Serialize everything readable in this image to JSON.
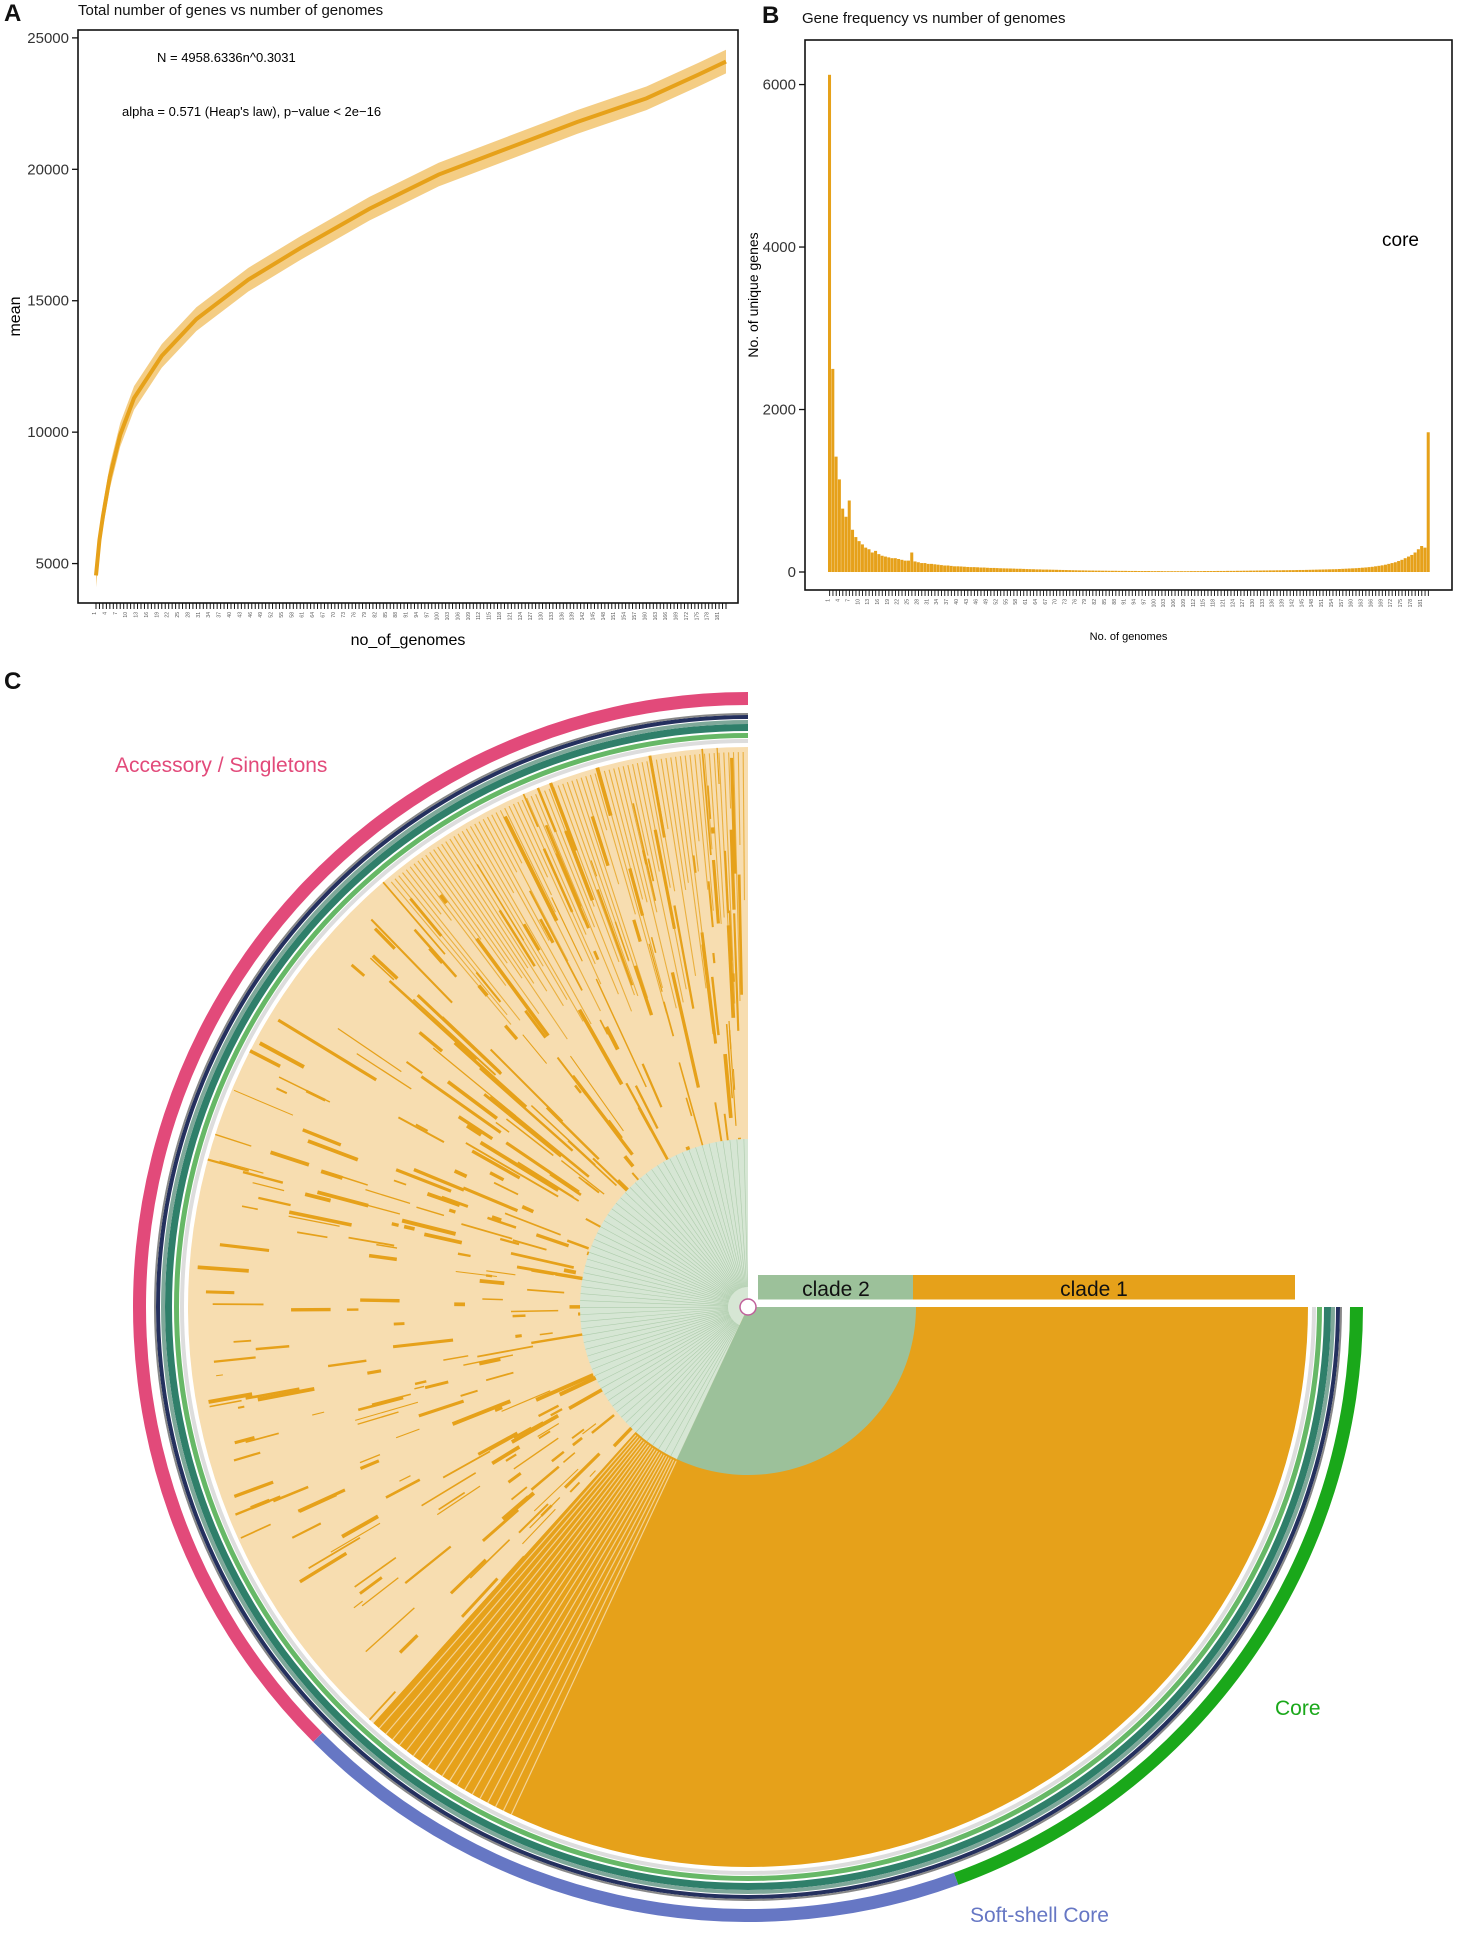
{
  "panels": {
    "a": "A",
    "b": "B",
    "c": "C"
  },
  "chart_data": [
    {
      "type": "line",
      "title": "Total number of genes vs number of genomes",
      "xlabel": "no_of_genomes",
      "ylabel": "mean",
      "yticks": [
        5000,
        10000,
        15000,
        20000,
        25000
      ],
      "ylim": [
        3500,
        25300
      ],
      "xlim": [
        1,
        183
      ],
      "annotation_formula": "N = 4958.6336n^0.3031",
      "annotation_alpha": "alpha = 0.571 (Heap's law), p−value < 2e−16",
      "fit": {
        "a": 4958.6336,
        "b": 0.3031
      },
      "series": [
        {
          "x": [
            1,
            2,
            3,
            5,
            8,
            12,
            20,
            30,
            45,
            60,
            80,
            100,
            120,
            140,
            160,
            175,
            183
          ],
          "y": [
            4550,
            5900,
            6800,
            8300,
            9900,
            11300,
            12900,
            14300,
            15800,
            17000,
            18500,
            19800,
            20800,
            21800,
            22700,
            23600,
            24100
          ],
          "band": 450
        }
      ],
      "colors": {
        "line": "#e6a11a",
        "band": "#f2c46e"
      },
      "grid": false
    },
    {
      "type": "bar",
      "title": "Gene frequency vs number of genomes",
      "xlabel": "No. of genomes",
      "ylabel": "No. of unique genes",
      "yticks": [
        0,
        2000,
        4000,
        6000
      ],
      "ylim": [
        0,
        6450
      ],
      "annotation": "core",
      "n_bins": 183,
      "values": [
        6120,
        2500,
        1420,
        1140,
        780,
        680,
        880,
        520,
        430,
        380,
        340,
        300,
        280,
        240,
        260,
        220,
        200,
        190,
        180,
        170,
        170,
        160,
        150,
        140,
        140,
        240,
        130,
        120,
        110,
        110,
        100,
        100,
        95,
        90,
        85,
        80,
        80,
        75,
        70,
        70,
        68,
        65,
        62,
        60,
        60,
        58,
        55,
        55,
        52,
        50,
        50,
        48,
        46,
        45,
        44,
        43,
        42,
        40,
        40,
        38,
        36,
        35,
        34,
        32,
        32,
        30,
        30,
        29,
        28,
        27,
        26,
        25,
        24,
        23,
        22,
        21,
        20,
        20,
        19,
        18,
        18,
        17,
        17,
        16,
        16,
        15,
        15,
        15,
        14,
        14,
        14,
        13,
        13,
        13,
        12,
        12,
        12,
        12,
        11,
        11,
        11,
        11,
        10,
        10,
        10,
        10,
        10,
        10,
        10,
        10,
        11,
        11,
        11,
        11,
        12,
        12,
        12,
        12,
        13,
        13,
        13,
        14,
        14,
        14,
        15,
        15,
        16,
        16,
        17,
        17,
        18,
        18,
        19,
        19,
        20,
        20,
        21,
        21,
        22,
        22,
        23,
        23,
        24,
        25,
        25,
        26,
        27,
        28,
        29,
        30,
        31,
        32,
        33,
        34,
        35,
        37,
        39,
        41,
        43,
        45,
        47,
        50,
        53,
        56,
        60,
        64,
        70,
        76,
        82,
        90,
        100,
        110,
        120,
        135,
        150,
        170,
        190,
        210,
        240,
        280,
        320,
        300,
        1720
      ],
      "colors": {
        "bar": "#e6a11a"
      },
      "grid": false
    },
    {
      "type": "heatmap",
      "labels": {
        "accessory": "Accessory / Singletons",
        "softshell": "Soft-shell Core",
        "core": "Core",
        "clade1": "clade 1",
        "clade2": "clade 2"
      },
      "colors": {
        "accessory_ring": "#e24a7a",
        "softshell_ring": "#6677c4",
        "core_ring": "#1aa81a",
        "heat_dark": "#e6a11a",
        "heat_light": "#f7ddb0",
        "clade2": "#9cc19a",
        "clade2_light": "#d6e6d4",
        "ring_teal": "#2f7f6a",
        "ring_navy": "#24305e"
      }
    }
  ]
}
